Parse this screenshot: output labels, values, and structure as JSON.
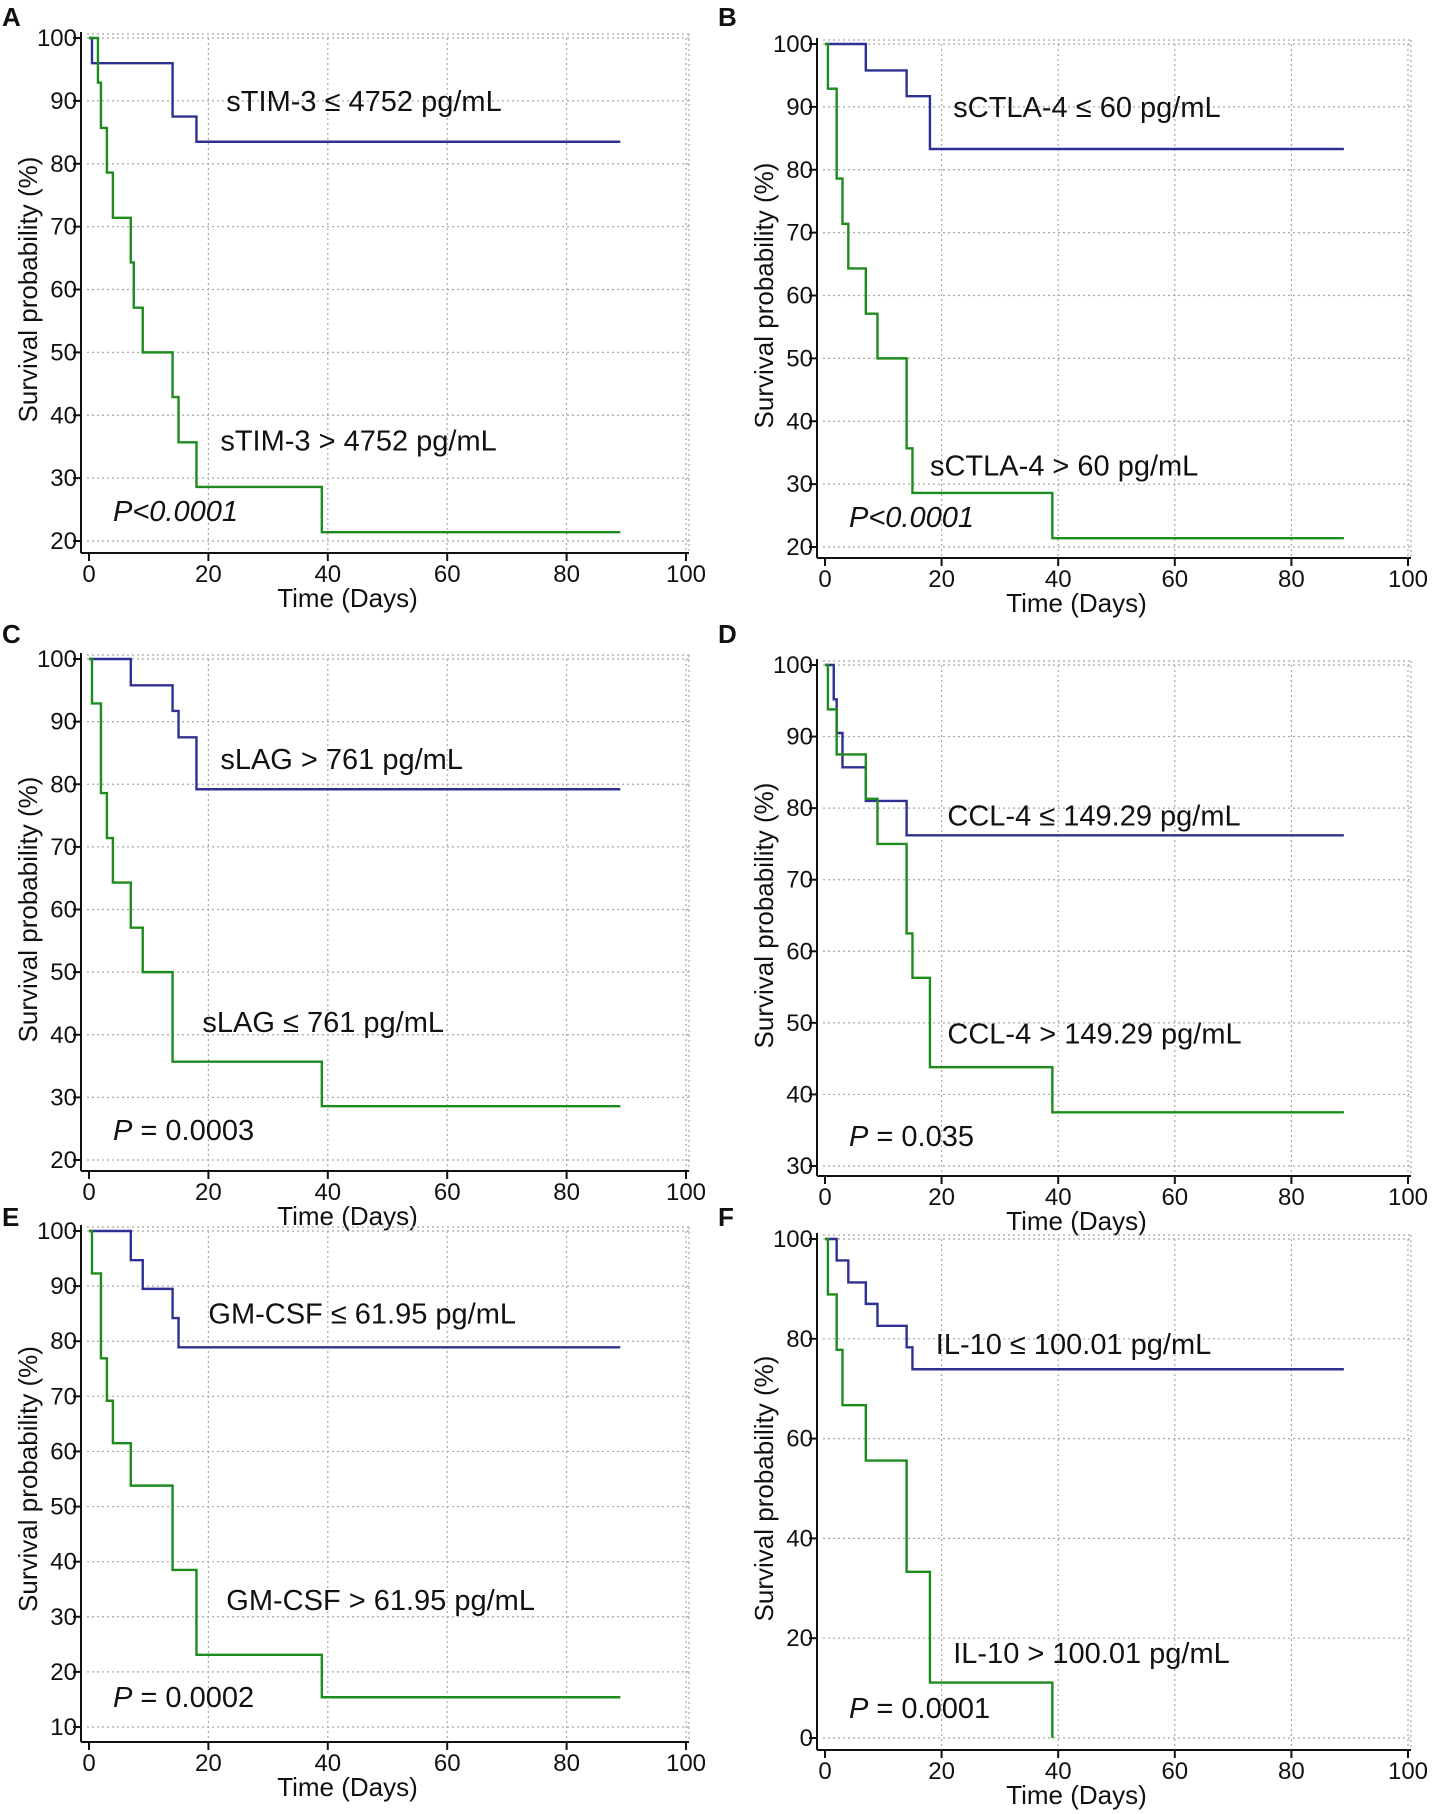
{
  "figure": {
    "description_panels": [
      "A",
      "B",
      "C",
      "D",
      "E",
      "F"
    ]
  },
  "chart_data": [
    {
      "type": "line",
      "panel": "A",
      "title": "",
      "xlabel": "Time (Days)",
      "ylabel": "Survival probability (%)",
      "xlim": [
        0,
        100
      ],
      "ylim": [
        20,
        100
      ],
      "xticks": [
        0,
        20,
        40,
        60,
        80,
        100
      ],
      "yticks": [
        20,
        30,
        40,
        50,
        60,
        70,
        80,
        90,
        100
      ],
      "p_prefix": "",
      "p_value": "P<0.0001",
      "p_italic_all": true,
      "series": [
        {
          "name": "sTIM-3 ≤ 4752 pg/mL",
          "color": "#2e3192",
          "label_x": 23,
          "label_y": 90,
          "steps": [
            [
              0,
              100
            ],
            [
              0.5,
              96
            ],
            [
              14,
              87.5
            ],
            [
              18,
              83.5
            ],
            [
              89,
              83.5
            ]
          ]
        },
        {
          "name": "sTIM-3 > 4752 pg/mL",
          "color": "#1e8b1e",
          "label_x": 22,
          "label_y": 36,
          "steps": [
            [
              0,
              100
            ],
            [
              1,
              100
            ],
            [
              1.5,
              92.9
            ],
            [
              2,
              85.7
            ],
            [
              3,
              78.6
            ],
            [
              4,
              71.4
            ],
            [
              7,
              64.3
            ],
            [
              7.5,
              57.1
            ],
            [
              9,
              50
            ],
            [
              14,
              42.9
            ],
            [
              15,
              35.7
            ],
            [
              18,
              28.6
            ],
            [
              39,
              21.4
            ],
            [
              89,
              21.4
            ]
          ]
        }
      ]
    },
    {
      "type": "line",
      "panel": "B",
      "title": "",
      "xlabel": "Time (Days)",
      "ylabel": "Survival probability (%)",
      "xlim": [
        0,
        100
      ],
      "ylim": [
        20,
        100
      ],
      "xticks": [
        0,
        20,
        40,
        60,
        80,
        100
      ],
      "yticks": [
        20,
        30,
        40,
        50,
        60,
        70,
        80,
        90,
        100
      ],
      "p_prefix": "",
      "p_value": "P<0.0001",
      "p_italic_all": true,
      "series": [
        {
          "name": "sCTLA-4 ≤ 60 pg/mL",
          "color": "#2e3192",
          "label_x": 22,
          "label_y": 90,
          "steps": [
            [
              0,
              100
            ],
            [
              7,
              95.8
            ],
            [
              14,
              91.7
            ],
            [
              18,
              83.3
            ],
            [
              89,
              83.3
            ]
          ]
        },
        {
          "name": "sCTLA-4 > 60 pg/mL",
          "color": "#1e8b1e",
          "label_x": 18,
          "label_y": 33,
          "steps": [
            [
              0,
              100
            ],
            [
              0.5,
              92.9
            ],
            [
              2,
              78.6
            ],
            [
              3,
              71.4
            ],
            [
              4,
              64.3
            ],
            [
              7,
              57.1
            ],
            [
              9,
              50
            ],
            [
              14,
              35.7
            ],
            [
              15,
              28.6
            ],
            [
              39,
              21.4
            ],
            [
              89,
              21.4
            ]
          ]
        }
      ]
    },
    {
      "type": "line",
      "panel": "C",
      "title": "",
      "xlabel": "Time (Days)",
      "ylabel": "Survival probability (%)",
      "xlim": [
        0,
        100
      ],
      "ylim": [
        20,
        100
      ],
      "xticks": [
        0,
        20,
        40,
        60,
        80,
        100
      ],
      "yticks": [
        20,
        30,
        40,
        50,
        60,
        70,
        80,
        90,
        100
      ],
      "p_prefix": "P",
      "p_value": " = 0.0003",
      "p_italic_all": false,
      "series": [
        {
          "name": "sLAG > 761 pg/mL",
          "color": "#2e3192",
          "label_x": 22,
          "label_y": 84,
          "steps": [
            [
              0,
              100
            ],
            [
              7,
              95.8
            ],
            [
              14,
              91.7
            ],
            [
              15,
              87.5
            ],
            [
              18,
              79.2
            ],
            [
              89,
              79.2
            ]
          ]
        },
        {
          "name": "sLAG ≤ 761 pg/mL",
          "color": "#1e8b1e",
          "label_x": 19,
          "label_y": 42,
          "steps": [
            [
              0,
              100
            ],
            [
              0.5,
              92.9
            ],
            [
              2,
              78.6
            ],
            [
              3,
              71.4
            ],
            [
              4,
              64.3
            ],
            [
              7,
              57.1
            ],
            [
              9,
              50
            ],
            [
              14,
              35.7
            ],
            [
              39,
              28.6
            ],
            [
              89,
              28.6
            ]
          ]
        }
      ]
    },
    {
      "type": "line",
      "panel": "D",
      "title": "",
      "xlabel": "Time (Days)",
      "ylabel": "Survival probability (%)",
      "xlim": [
        0,
        100
      ],
      "ylim": [
        30,
        100
      ],
      "xticks": [
        0,
        20,
        40,
        60,
        80,
        100
      ],
      "yticks": [
        30,
        40,
        50,
        60,
        70,
        80,
        90,
        100
      ],
      "p_prefix": "P",
      "p_value": " = 0.035",
      "p_italic_all": false,
      "series": [
        {
          "name": "CCL-4 ≤ 149.29 pg/mL",
          "color": "#2e3192",
          "label_x": 21,
          "label_y": 79,
          "steps": [
            [
              0,
              100
            ],
            [
              1,
              100
            ],
            [
              1.5,
              95.2
            ],
            [
              2,
              90.5
            ],
            [
              3,
              85.7
            ],
            [
              7,
              81
            ],
            [
              14,
              81
            ],
            [
              14,
              76.2
            ],
            [
              89,
              76.2
            ]
          ]
        },
        {
          "name": "CCL-4 > 149.29 pg/mL",
          "color": "#1e8b1e",
          "label_x": 21,
          "label_y": 48.5,
          "steps": [
            [
              0,
              100
            ],
            [
              0.5,
              93.8
            ],
            [
              2,
              87.5
            ],
            [
              7,
              81.3
            ],
            [
              9,
              75
            ],
            [
              14,
              62.5
            ],
            [
              15,
              56.3
            ],
            [
              18,
              43.8
            ],
            [
              39,
              37.5
            ],
            [
              89,
              37.5
            ]
          ]
        }
      ]
    },
    {
      "type": "line",
      "panel": "E",
      "title": "",
      "xlabel": "Time (Days)",
      "ylabel": "Survival probability (%)",
      "xlim": [
        0,
        100
      ],
      "ylim": [
        10,
        100
      ],
      "xticks": [
        0,
        20,
        40,
        60,
        80,
        100
      ],
      "yticks": [
        10,
        20,
        30,
        40,
        50,
        60,
        70,
        80,
        90,
        100
      ],
      "p_prefix": "P",
      "p_value": " = 0.0002",
      "p_italic_all": false,
      "series": [
        {
          "name": "GM-CSF ≤ 61.95 pg/mL",
          "color": "#2e3192",
          "label_x": 20,
          "label_y": 85,
          "steps": [
            [
              0,
              100
            ],
            [
              7,
              94.7
            ],
            [
              9,
              89.5
            ],
            [
              14,
              84.2
            ],
            [
              15,
              78.9
            ],
            [
              89,
              78.9
            ]
          ]
        },
        {
          "name": "GM-CSF > 61.95 pg/mL",
          "color": "#1e8b1e",
          "label_x": 23,
          "label_y": 33,
          "steps": [
            [
              0,
              100
            ],
            [
              0.5,
              92.3
            ],
            [
              2,
              76.9
            ],
            [
              3,
              69.2
            ],
            [
              4,
              61.5
            ],
            [
              7,
              53.8
            ],
            [
              14,
              38.5
            ],
            [
              18,
              23.1
            ],
            [
              39,
              15.4
            ],
            [
              89,
              15.4
            ]
          ]
        }
      ]
    },
    {
      "type": "line",
      "panel": "F",
      "title": "",
      "xlabel": "Time (Days)",
      "ylabel": "Survival probability (%)",
      "xlim": [
        0,
        100
      ],
      "ylim": [
        0,
        100
      ],
      "xticks": [
        0,
        20,
        40,
        60,
        80,
        100
      ],
      "yticks": [
        0,
        20,
        40,
        60,
        80,
        100
      ],
      "p_prefix": "P",
      "p_value": " = 0.0001",
      "p_italic_all": false,
      "series": [
        {
          "name": "IL-10 ≤ 100.01 pg/mL",
          "color": "#2e3192",
          "label_x": 19,
          "label_y": 79,
          "steps": [
            [
              0,
              100
            ],
            [
              2,
              95.7
            ],
            [
              4,
              91.3
            ],
            [
              7,
              87
            ],
            [
              9,
              82.6
            ],
            [
              14,
              78.3
            ],
            [
              15,
              73.9
            ],
            [
              89,
              73.9
            ]
          ]
        },
        {
          "name": "IL-10 > 100.01 pg/mL",
          "color": "#1e8b1e",
          "label_x": 22,
          "label_y": 17,
          "steps": [
            [
              0,
              100
            ],
            [
              0.5,
              88.9
            ],
            [
              2,
              77.8
            ],
            [
              3,
              66.7
            ],
            [
              7,
              55.6
            ],
            [
              14,
              33.3
            ],
            [
              18,
              11.1
            ],
            [
              39,
              0
            ],
            [
              39,
              0
            ]
          ]
        }
      ]
    }
  ]
}
